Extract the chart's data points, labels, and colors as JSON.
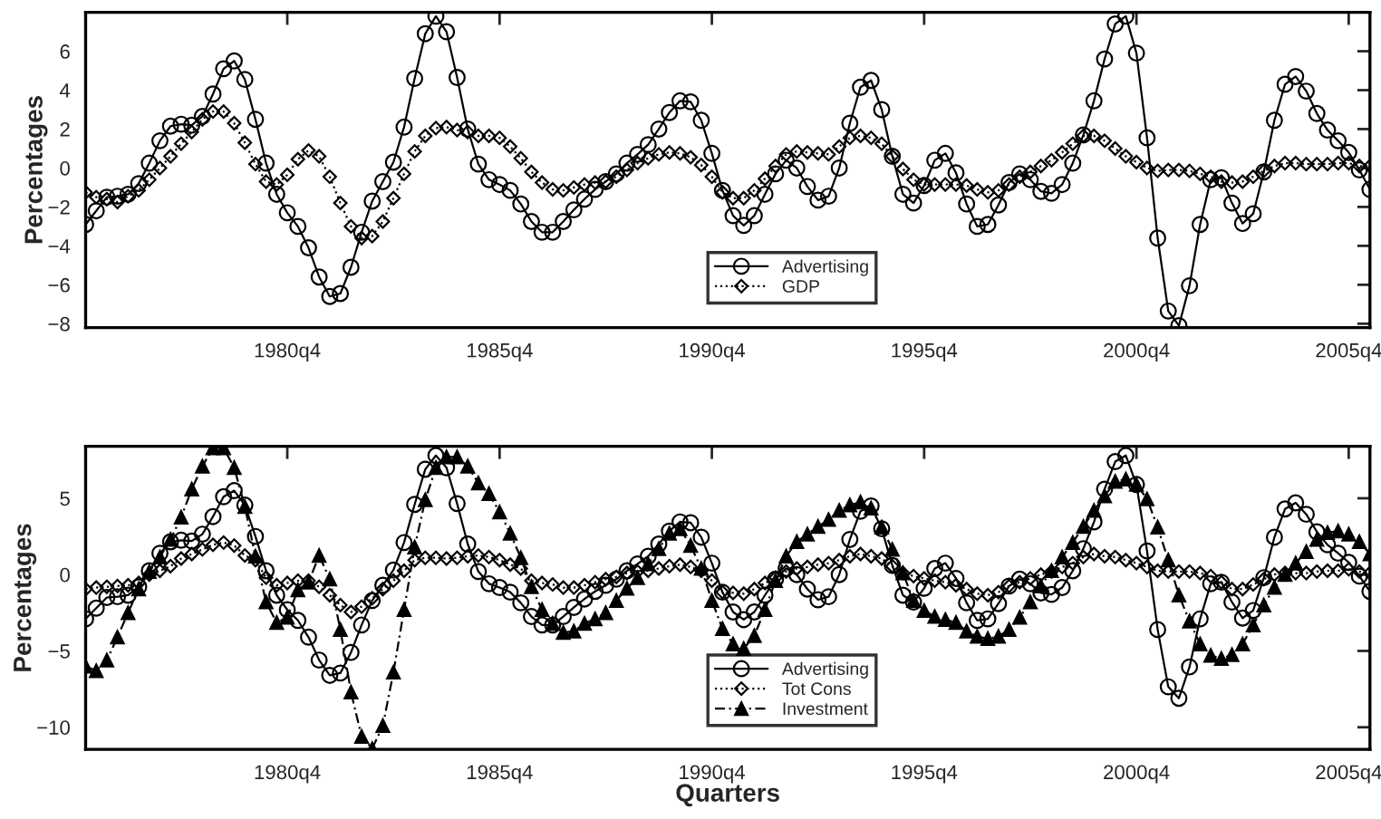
{
  "chart_data": [
    {
      "type": "line",
      "ylabel": "Percentages",
      "categories": [
        null,
        null,
        null,
        null,
        null,
        null,
        null,
        null,
        null,
        null,
        null,
        null,
        null,
        null,
        null,
        null,
        null,
        null,
        null,
        "1980q4",
        null,
        null,
        null,
        null,
        null,
        null,
        null,
        null,
        null,
        null,
        null,
        null,
        null,
        null,
        null,
        null,
        null,
        null,
        null,
        "1985q4",
        null,
        null,
        null,
        null,
        null,
        null,
        null,
        null,
        null,
        null,
        null,
        null,
        null,
        null,
        null,
        null,
        null,
        null,
        null,
        "1990q4",
        null,
        null,
        null,
        null,
        null,
        null,
        null,
        null,
        null,
        null,
        null,
        null,
        null,
        null,
        null,
        null,
        null,
        null,
        null,
        "1995q4",
        null,
        null,
        null,
        null,
        null,
        null,
        null,
        null,
        null,
        null,
        null,
        null,
        null,
        null,
        null,
        null,
        null,
        null,
        null,
        "2000q4",
        null,
        null,
        null,
        null,
        null,
        null,
        null,
        null,
        null,
        null,
        null,
        null,
        null,
        null,
        null,
        null,
        null,
        null,
        null,
        "2005q4",
        null,
        null
      ],
      "series": [
        {
          "name": "Advertising",
          "color": "#000000",
          "marker": "circle",
          "line_style": "solid",
          "values": [
            -2.9,
            -2.2,
            -1.5,
            -1.45,
            -1.35,
            -0.8,
            0.25,
            1.4,
            2.15,
            2.25,
            2.2,
            2.65,
            3.8,
            5.1,
            5.5,
            4.55,
            2.5,
            0.25,
            -1.35,
            -2.3,
            -3.0,
            -4.1,
            -5.6,
            -6.6,
            -6.45,
            -5.1,
            -3.3,
            -1.7,
            -0.7,
            0.3,
            2.1,
            4.6,
            6.9,
            7.8,
            7.0,
            4.65,
            2.0,
            0.2,
            -0.6,
            -0.85,
            -1.15,
            -1.85,
            -2.75,
            -3.3,
            -3.3,
            -2.75,
            -2.15,
            -1.6,
            -1.1,
            -0.7,
            -0.3,
            0.25,
            0.7,
            1.2,
            2.0,
            2.85,
            3.45,
            3.4,
            2.45,
            0.75,
            -1.15,
            -2.45,
            -2.95,
            -2.45,
            -1.35,
            -0.3,
            0.4,
            0,
            -0.95,
            -1.65,
            -1.45,
            0,
            2.3,
            4.15,
            4.5,
            3.0,
            0.6,
            -1.35,
            -1.8,
            -0.9,
            0.4,
            0.75,
            -0.25,
            -1.85,
            -3.0,
            -2.9,
            -1.9,
            -0.75,
            -0.3,
            -0.6,
            -1.2,
            -1.3,
            -0.85,
            0.25,
            1.7,
            3.45,
            5.6,
            7.4,
            7.8,
            5.9,
            1.55,
            -3.6,
            -7.35,
            -8.1,
            -6.05,
            -2.9,
            -0.6,
            -0.5,
            -1.8,
            -2.85,
            -2.35,
            -0.2,
            2.45,
            4.3,
            4.7,
            3.95,
            2.8,
            1.95,
            1.4,
            0.8,
            -0.1,
            -1.1
          ]
        },
        {
          "name": "GDP",
          "color": "#000000",
          "marker": "diamond",
          "line_style": "dotted",
          "values": [
            -1.25,
            -1.5,
            -1.6,
            -1.75,
            -1.45,
            -1.15,
            -0.6,
            0,
            0.6,
            1.25,
            1.85,
            2.5,
            2.9,
            2.9,
            2.3,
            1.3,
            0.2,
            -0.7,
            -0.85,
            -0.35,
            0.45,
            0.9,
            0.6,
            -0.45,
            -1.8,
            -3.0,
            -3.6,
            -3.5,
            -2.75,
            -1.55,
            -0.3,
            0.85,
            1.65,
            2.05,
            2.1,
            1.95,
            1.85,
            1.65,
            1.65,
            1.55,
            1.1,
            0.5,
            -0.2,
            -0.75,
            -1.1,
            -1.15,
            -1.0,
            -0.85,
            -0.75,
            -0.7,
            -0.45,
            -0.1,
            0.25,
            0.5,
            0.7,
            0.8,
            0.75,
            0.55,
            0.15,
            -0.45,
            -1.25,
            -1.55,
            -1.55,
            -1.15,
            -0.55,
            0.1,
            0.7,
            0.85,
            0.8,
            0.75,
            0.7,
            1.1,
            1.55,
            1.65,
            1.55,
            1.25,
            0.6,
            -0.05,
            -0.6,
            -0.85,
            -0.85,
            -0.85,
            -0.85,
            -0.9,
            -1.1,
            -1.25,
            -1.15,
            -0.85,
            -0.45,
            -0.2,
            0.1,
            0.4,
            0.8,
            1.25,
            1.65,
            1.65,
            1.4,
            1.0,
            0.6,
            0.3,
            0,
            -0.15,
            -0.1,
            -0.1,
            -0.15,
            -0.3,
            -0.45,
            -0.7,
            -0.75,
            -0.7,
            -0.45,
            -0.15,
            0.1,
            0.25,
            0.25,
            0.2,
            0.2,
            0.2,
            0.25,
            0.25,
            0.1,
            0.1
          ]
        }
      ],
      "ylim": [
        -8.2,
        8.0
      ],
      "yticks": [
        -8,
        -6,
        -4,
        -2,
        0,
        2,
        4,
        6
      ],
      "grid": false,
      "legend": "bottom"
    },
    {
      "type": "line",
      "xlabel": "Quarters",
      "ylabel": "Percentages",
      "categories": [
        null,
        null,
        null,
        null,
        null,
        null,
        null,
        null,
        null,
        null,
        null,
        null,
        null,
        null,
        null,
        null,
        null,
        null,
        null,
        "1980q4",
        null,
        null,
        null,
        null,
        null,
        null,
        null,
        null,
        null,
        null,
        null,
        null,
        null,
        null,
        null,
        null,
        null,
        null,
        null,
        "1985q4",
        null,
        null,
        null,
        null,
        null,
        null,
        null,
        null,
        null,
        null,
        null,
        null,
        null,
        null,
        null,
        null,
        null,
        null,
        null,
        "1990q4",
        null,
        null,
        null,
        null,
        null,
        null,
        null,
        null,
        null,
        null,
        null,
        null,
        null,
        null,
        null,
        null,
        null,
        null,
        null,
        "1995q4",
        null,
        null,
        null,
        null,
        null,
        null,
        null,
        null,
        null,
        null,
        null,
        null,
        null,
        null,
        null,
        null,
        null,
        null,
        null,
        "2000q4",
        null,
        null,
        null,
        null,
        null,
        null,
        null,
        null,
        null,
        null,
        null,
        null,
        null,
        null,
        null,
        null,
        null,
        null,
        null,
        "2005q4",
        null,
        null
      ],
      "series": [
        {
          "name": "Advertising",
          "color": "#000000",
          "marker": "circle",
          "line_style": "solid",
          "values": [
            -2.9,
            -2.2,
            -1.5,
            -1.45,
            -1.35,
            -0.8,
            0.25,
            1.4,
            2.15,
            2.25,
            2.2,
            2.65,
            3.8,
            5.1,
            5.5,
            4.55,
            2.5,
            0.25,
            -1.35,
            -2.3,
            -3.0,
            -4.1,
            -5.6,
            -6.6,
            -6.45,
            -5.1,
            -3.3,
            -1.7,
            -0.7,
            0.3,
            2.1,
            4.6,
            6.9,
            7.8,
            7.0,
            4.65,
            2.0,
            0.2,
            -0.6,
            -0.85,
            -1.15,
            -1.85,
            -2.75,
            -3.3,
            -3.3,
            -2.75,
            -2.15,
            -1.6,
            -1.1,
            -0.7,
            -0.3,
            0.25,
            0.7,
            1.2,
            2.0,
            2.85,
            3.45,
            3.4,
            2.45,
            0.75,
            -1.15,
            -2.45,
            -2.95,
            -2.45,
            -1.35,
            -0.3,
            0.4,
            0,
            -0.95,
            -1.65,
            -1.45,
            0,
            2.3,
            4.15,
            4.5,
            3.0,
            0.6,
            -1.35,
            -1.8,
            -0.9,
            0.4,
            0.75,
            -0.25,
            -1.85,
            -3.0,
            -2.9,
            -1.9,
            -0.75,
            -0.3,
            -0.6,
            -1.2,
            -1.3,
            -0.85,
            0.25,
            1.7,
            3.45,
            5.6,
            7.4,
            7.8,
            5.9,
            1.55,
            -3.6,
            -7.35,
            -8.1,
            -6.05,
            -2.9,
            -0.6,
            -0.5,
            -1.8,
            -2.85,
            -2.35,
            -0.2,
            2.45,
            4.3,
            4.7,
            3.95,
            2.8,
            1.95,
            1.4,
            0.8,
            -0.1,
            -1.1
          ]
        },
        {
          "name": "Tot Cons",
          "color": "#000000",
          "marker": "diamond",
          "line_style": "dotted",
          "values": [
            -0.95,
            -0.85,
            -0.8,
            -0.75,
            -0.7,
            -0.55,
            0,
            0.25,
            0.55,
            1.05,
            1.35,
            1.65,
            1.95,
            2.1,
            1.9,
            1.25,
            0.95,
            -0.2,
            -0.7,
            -0.55,
            -0.4,
            -0.4,
            -0.8,
            -1.35,
            -2.0,
            -2.45,
            -2.1,
            -1.55,
            -0.95,
            -0.4,
            0.25,
            0.95,
            1.1,
            1.1,
            1.05,
            1.1,
            1.2,
            1.25,
            1.15,
            0.95,
            0.65,
            0.4,
            -0.4,
            -0.55,
            -0.65,
            -0.85,
            -0.85,
            -0.7,
            -0.5,
            -0.3,
            -0.15,
            0.1,
            0.2,
            0.25,
            0.4,
            0.55,
            0.65,
            0.5,
            0.25,
            -0.4,
            -1.15,
            -1.2,
            -1.25,
            -0.95,
            -0.55,
            -0.2,
            0.2,
            0.4,
            0.5,
            0.65,
            0.75,
            0.95,
            1.2,
            1.35,
            1.2,
            1.05,
            0.55,
            0.1,
            -0.1,
            -0.25,
            -0.4,
            -0.5,
            -0.7,
            -0.95,
            -1.25,
            -1.35,
            -1.15,
            -0.75,
            -0.5,
            -0.25,
            0,
            0.2,
            0.5,
            0.75,
            1.15,
            1.35,
            1.2,
            1.15,
            0.95,
            0.75,
            0.5,
            0.25,
            0.2,
            0.2,
            0.2,
            0.1,
            -0.1,
            -0.5,
            -0.95,
            -0.95,
            -0.65,
            -0.3,
            0,
            0.1,
            0.1,
            0.1,
            0.2,
            0.25,
            0.25,
            0.35,
            0.2,
            0.1
          ]
        },
        {
          "name": "Investment",
          "color": "#000000",
          "marker": "triangle",
          "line_style": "dashed",
          "values": [
            -6.0,
            -6.3,
            -5.6,
            -4.1,
            -2.5,
            -0.95,
            0.2,
            1.15,
            2.3,
            3.75,
            5.6,
            7.1,
            8.3,
            8.3,
            7.0,
            4.45,
            1.2,
            -1.8,
            -3.15,
            -2.8,
            -1.0,
            -0.5,
            1.25,
            -0.3,
            -3.6,
            -7.7,
            -10.6,
            -11.4,
            -9.9,
            -6.4,
            -2.3,
            1.8,
            4.9,
            7.0,
            7.7,
            7.7,
            7.1,
            6.0,
            5.3,
            4.1,
            2.7,
            1.1,
            -0.8,
            -2.3,
            -3.2,
            -3.8,
            -3.7,
            -3.2,
            -2.9,
            -2.5,
            -1.7,
            -0.9,
            -0.2,
            0.7,
            1.7,
            2.7,
            3.0,
            1.9,
            0.4,
            -1.7,
            -3.55,
            -4.55,
            -4.85,
            -4.0,
            -2.3,
            -0.4,
            1.2,
            2.15,
            2.65,
            3.15,
            3.6,
            4.2,
            4.55,
            4.75,
            4.35,
            3.1,
            1.65,
            0.1,
            -1.7,
            -2.35,
            -2.75,
            -2.95,
            -3.15,
            -3.7,
            -4.05,
            -4.2,
            -4.05,
            -3.6,
            -2.8,
            -1.8,
            -0.75,
            0.25,
            1.15,
            2.1,
            3.15,
            4.2,
            5.15,
            6.1,
            6.25,
            5.9,
            4.95,
            3.1,
            0.95,
            -1.35,
            -3.05,
            -4.55,
            -5.3,
            -5.5,
            -5.25,
            -4.55,
            -3.3,
            -2.0,
            -0.85,
            0,
            0.75,
            1.5,
            2.3,
            2.75,
            2.85,
            2.65,
            2.15,
            1.35
          ]
        }
      ],
      "ylim": [
        -11.45,
        8.4
      ],
      "yticks": [
        -10,
        -5,
        0,
        5
      ],
      "grid": false,
      "legend": "bottom"
    }
  ]
}
